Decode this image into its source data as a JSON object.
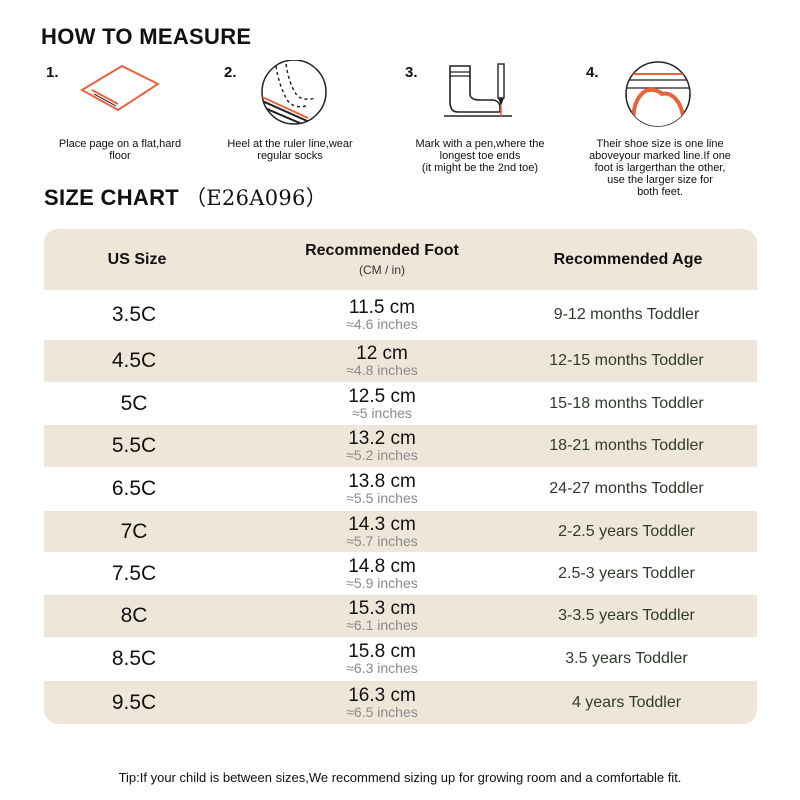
{
  "measure": {
    "title": "HOW TO MEASURE",
    "steps": [
      {
        "num": "1.",
        "icon": "paper-sheet-icon",
        "caption_lines": [
          "Place page on a flat,hard",
          "floor"
        ]
      },
      {
        "num": "2.",
        "icon": "heel-on-ruler-icon",
        "caption_lines": [
          "Heel at the ruler line,wear",
          "regular socks"
        ]
      },
      {
        "num": "3.",
        "icon": "sock-and-pen-icon",
        "caption_lines": [
          "Mark with a pen,where the",
          "longest toe ends",
          "(it might be the 2nd toe)"
        ]
      },
      {
        "num": "4.",
        "icon": "toe-line-icon",
        "caption_lines": [
          "Their shoe size is one line",
          "aboveyour marked line.If one",
          "foot is largerthan the other,",
          "use the larger size for",
          "both feet."
        ]
      }
    ]
  },
  "chart": {
    "title": "SIZE CHART",
    "code": "（E26A096）",
    "headers": {
      "size": "US Size",
      "foot": "Recommended Foot",
      "foot_sub": "(CM / in)",
      "age": "Recommended Age"
    },
    "rows": [
      {
        "size": "3.5C",
        "cm": "11.5 cm",
        "inches": "≈4.6 inches",
        "age": "9-12 months Toddler"
      },
      {
        "size": "4.5C",
        "cm": "12 cm",
        "inches": "≈4.8 inches",
        "age": "12-15 months Toddler"
      },
      {
        "size": "5C",
        "cm": "12.5 cm",
        "inches": "≈5 inches",
        "age": "15-18 months Toddler"
      },
      {
        "size": "5.5C",
        "cm": "13.2 cm",
        "inches": "≈5.2 inches",
        "age": "18-21 months Toddler"
      },
      {
        "size": "6.5C",
        "cm": "13.8 cm",
        "inches": "≈5.5 inches",
        "age": "24-27 months Toddler"
      },
      {
        "size": "7C",
        "cm": "14.3 cm",
        "inches": "≈5.7 inches",
        "age": "2-2.5 years Toddler"
      },
      {
        "size": "7.5C",
        "cm": "14.8 cm",
        "inches": "≈5.9 inches",
        "age": "2.5-3 years Toddler"
      },
      {
        "size": "8C",
        "cm": "15.3 cm",
        "inches": "≈6.1 inches",
        "age": "3-3.5 years Toddler"
      },
      {
        "size": "8.5C",
        "cm": "15.8 cm",
        "inches": "≈6.3 inches",
        "age": "3.5 years Toddler"
      },
      {
        "size": "9.5C",
        "cm": "16.3 cm",
        "inches": "≈6.5 inches",
        "age": "4 years Toddler"
      }
    ]
  },
  "tip": "Tip:If your child is between sizes,We recommend sizing up for growing room and a comfortable fit.",
  "colors": {
    "accent": "#e8643c",
    "band": "#efe6da",
    "age_text": "#2f3c2c",
    "inch_text": "#8a8a8a"
  }
}
